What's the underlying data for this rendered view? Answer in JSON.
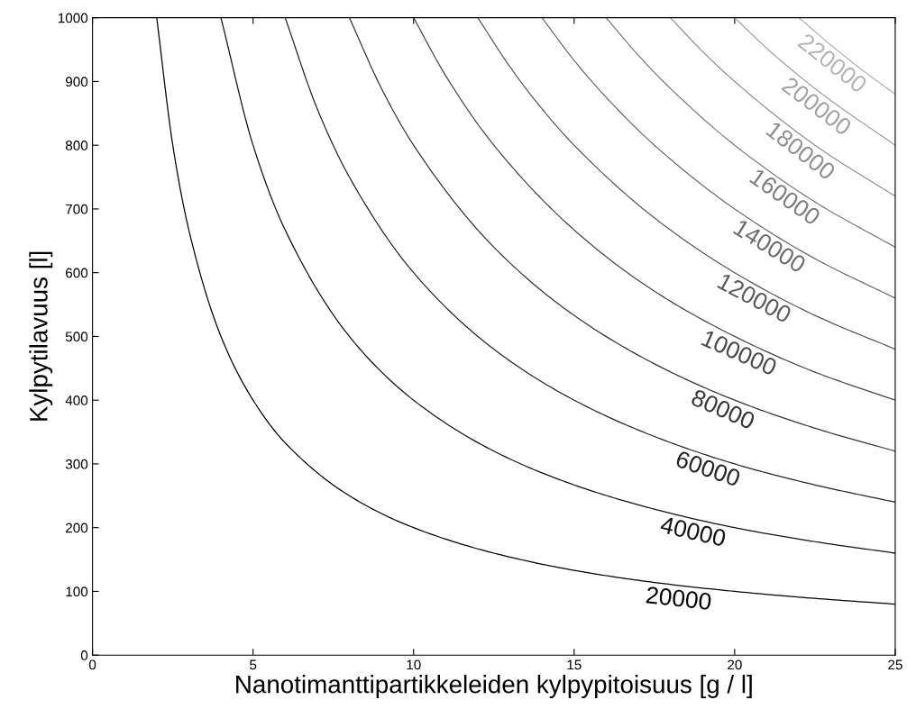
{
  "chart_data": {
    "type": "line",
    "xlabel": "Nanotimanttipartikkeleiden kylpypitoisuus [g / l]",
    "ylabel": "Kylpytilavuus [l]",
    "xlim": [
      0,
      25
    ],
    "xticks": [
      0,
      5,
      10,
      15,
      20,
      25
    ],
    "ylim": [
      0,
      1000
    ],
    "yticks": [
      0,
      100,
      200,
      300,
      400,
      500,
      600,
      700,
      800,
      900,
      1000
    ],
    "grid": false,
    "legend": false,
    "marker": "none",
    "line_style": "solid",
    "series": [
      {
        "name": "20000",
        "color": "#000000",
        "x": [
          2,
          2.5,
          3,
          4,
          5,
          6,
          8,
          10,
          12.5,
          15,
          17.5,
          20,
          22.5,
          25
        ],
        "values": [
          1000,
          800,
          667,
          500,
          400,
          333,
          250,
          200,
          160,
          133,
          114,
          100,
          89,
          80
        ]
      },
      {
        "name": "40000",
        "color": "#121212",
        "x": [
          4,
          5,
          6,
          8,
          10,
          12.5,
          15,
          17.5,
          20,
          22.5,
          25
        ],
        "values": [
          1000,
          800,
          667,
          500,
          400,
          320,
          267,
          229,
          200,
          178,
          160
        ]
      },
      {
        "name": "60000",
        "color": "#242424",
        "x": [
          6,
          7,
          8,
          10,
          12.5,
          15,
          17.5,
          20,
          22.5,
          25
        ],
        "values": [
          1000,
          857,
          750,
          600,
          480,
          400,
          343,
          300,
          267,
          240
        ]
      },
      {
        "name": "80000",
        "color": "#363636",
        "x": [
          8,
          9,
          10,
          12.5,
          15,
          17.5,
          20,
          22.5,
          25
        ],
        "values": [
          1000,
          889,
          800,
          640,
          533,
          457,
          400,
          356,
          320
        ]
      },
      {
        "name": "100000",
        "color": "#484848",
        "x": [
          10,
          11,
          12.5,
          15,
          17.5,
          20,
          22.5,
          25
        ],
        "values": [
          1000,
          909,
          800,
          667,
          571,
          500,
          444,
          400
        ]
      },
      {
        "name": "120000",
        "color": "#5a5a5a",
        "x": [
          12,
          13,
          14,
          15,
          17.5,
          20,
          22.5,
          25
        ],
        "values": [
          1000,
          923,
          857,
          800,
          686,
          600,
          533,
          480
        ]
      },
      {
        "name": "140000",
        "color": "#6c6c6c",
        "x": [
          14,
          15,
          16,
          17.5,
          20,
          22.5,
          25
        ],
        "values": [
          1000,
          933,
          875,
          800,
          700,
          622,
          560
        ]
      },
      {
        "name": "160000",
        "color": "#7e7e7e",
        "x": [
          16,
          17,
          18,
          20,
          22.5,
          25
        ],
        "values": [
          1000,
          941,
          889,
          800,
          711,
          640
        ]
      },
      {
        "name": "180000",
        "color": "#909090",
        "x": [
          18,
          19,
          20,
          22.5,
          25
        ],
        "values": [
          1000,
          947,
          900,
          800,
          720
        ]
      },
      {
        "name": "200000",
        "color": "#a2a2a2",
        "x": [
          20,
          21,
          22,
          23,
          25
        ],
        "values": [
          1000,
          952,
          909,
          870,
          800
        ]
      },
      {
        "name": "220000",
        "color": "#b4b4b4",
        "x": [
          22,
          23,
          24,
          25
        ],
        "values": [
          1000,
          957,
          917,
          880
        ]
      }
    ]
  }
}
